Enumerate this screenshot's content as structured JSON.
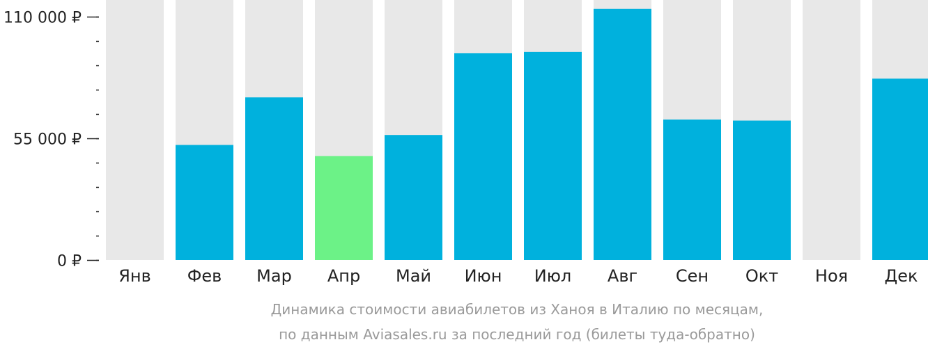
{
  "chart_data": {
    "type": "bar",
    "categories": [
      "Янв",
      "Фев",
      "Мар",
      "Апр",
      "Май",
      "Июн",
      "Июл",
      "Авг",
      "Сен",
      "Окт",
      "Ноя",
      "Дек"
    ],
    "values": [
      null,
      52000,
      73500,
      47000,
      56500,
      93500,
      94000,
      113500,
      63500,
      63000,
      null,
      82000
    ],
    "highlight_category": "Апр",
    "ylim": [
      0,
      115000
    ],
    "yticks": [
      {
        "value": 0,
        "label": "0 ₽"
      },
      {
        "value": 55000,
        "label": "55 000 ₽"
      },
      {
        "value": 110000,
        "label": "110 000 ₽"
      }
    ],
    "minor_tick_step": 11000,
    "xlabel": "",
    "ylabel": "",
    "caption": [
      "Динамика стоимости авиабилетов из Ханоя в Италию по месяцам,",
      "по данным Aviasales.ru за последний год (билеты туда-обратно)"
    ],
    "colors": {
      "bar": "#00b1dd",
      "highlight": "#6cf287",
      "track": "#e8e8e8",
      "axis": "#222222",
      "caption": "#9a9a9a"
    }
  }
}
